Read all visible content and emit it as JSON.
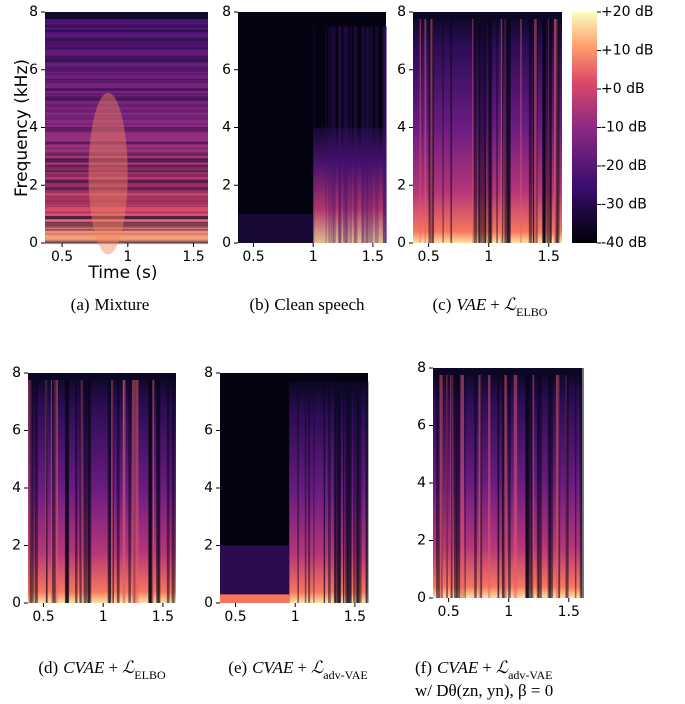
{
  "figure": {
    "ylabel": "Frequency (kHz)",
    "xlabel": "Time (s)",
    "xlim": [
      0.37,
      1.61
    ],
    "ylim": [
      0,
      8
    ],
    "xticks": [
      0.5,
      1,
      1.5
    ],
    "yticks": [
      0,
      2,
      4,
      6,
      8
    ],
    "colorbar": {
      "lim": [
        -40,
        20
      ],
      "ticks": [
        {
          "value": 20,
          "label": "+20 dB"
        },
        {
          "value": 10,
          "label": "+10 dB"
        },
        {
          "value": 0,
          "label": "+0 dB"
        },
        {
          "value": -10,
          "label": "-10 dB"
        },
        {
          "value": -20,
          "label": "-20 dB"
        },
        {
          "value": -30,
          "label": "-30 dB"
        },
        {
          "value": -40,
          "label": "-40 dB"
        }
      ]
    },
    "panels": [
      {
        "caption": {
          "label": "(a)",
          "text": "Mixture"
        }
      },
      {
        "caption": {
          "label": "(b)",
          "text": "Clean speech"
        }
      },
      {
        "caption": {
          "label": "(c)",
          "model": "VAE",
          "op": "+",
          "loss": "ℒ",
          "sub": "ELBO"
        }
      },
      {
        "caption": {
          "label": "(d)",
          "model": "CVAE",
          "op": "+",
          "loss": "ℒ",
          "sub": "ELBO"
        }
      },
      {
        "caption": {
          "label": "(e)",
          "model": "CVAE",
          "op": "+",
          "loss": "ℒ",
          "sub": "adv-VAE"
        }
      },
      {
        "caption": {
          "label": "(f)",
          "model": "CVAE",
          "op": "+",
          "loss": "ℒ",
          "sub": "adv-VAE",
          "line2": "w/ Dθ(zn, yn), β = 0"
        }
      }
    ]
  }
}
